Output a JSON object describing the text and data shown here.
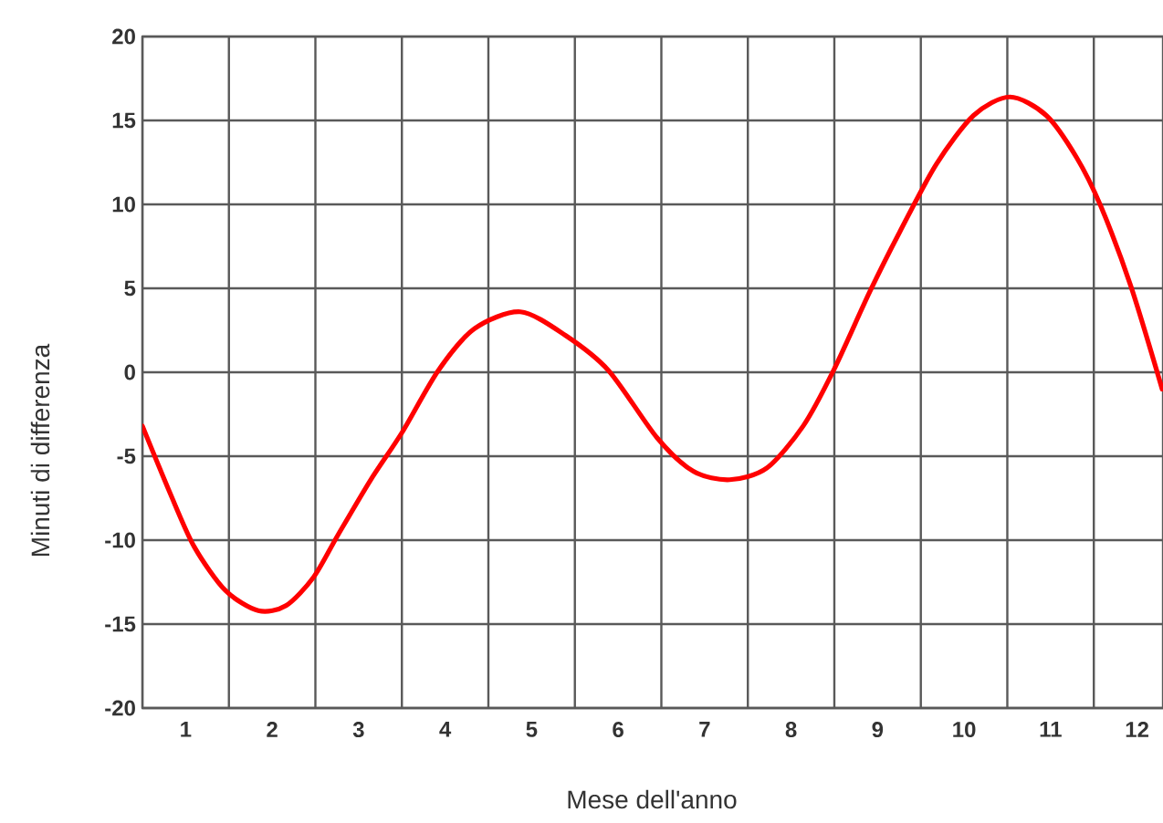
{
  "chart_data": {
    "type": "line",
    "xlabel": "Mese dell'anno",
    "ylabel": "Minuti di differenza",
    "x": [
      0,
      0.32,
      0.6,
      0.96,
      1.34,
      1.66,
      1.98,
      2.26,
      2.64,
      3.0,
      3.42,
      3.84,
      4.37,
      4.89,
      5.39,
      5.95,
      6.37,
      6.79,
      7.22,
      7.64,
      7.99,
      8.41,
      8.76,
      9.18,
      9.61,
      10.03,
      10.45,
      10.8,
      11.08,
      11.43,
      11.79
    ],
    "series": [
      {
        "color": "#ff0000",
        "values": [
          -3.2,
          -7.2,
          -10.4,
          -13.0,
          -14.2,
          -13.9,
          -12.2,
          -9.7,
          -6.4,
          -3.6,
          0.1,
          2.6,
          3.6,
          2.2,
          0.1,
          -3.9,
          -5.9,
          -6.4,
          -5.7,
          -3.2,
          0.1,
          4.8,
          8.4,
          12.4,
          15.3,
          16.4,
          15.3,
          12.8,
          9.9,
          5.1,
          -1.0
        ]
      }
    ],
    "xlim": [
      0,
      11.8
    ],
    "ylim": [
      -20,
      20
    ],
    "xticks": [
      {
        "value": 0,
        "label": null
      },
      {
        "value": 0.5,
        "label": "1"
      },
      {
        "value": 1,
        "label": null
      },
      {
        "value": 1.5,
        "label": "2"
      },
      {
        "value": 2,
        "label": null
      },
      {
        "value": 2.5,
        "label": "3"
      },
      {
        "value": 3,
        "label": null
      },
      {
        "value": 3.5,
        "label": "4"
      },
      {
        "value": 4,
        "label": null
      },
      {
        "value": 4.5,
        "label": "5"
      },
      {
        "value": 5,
        "label": null
      },
      {
        "value": 5.5,
        "label": "6"
      },
      {
        "value": 6,
        "label": null
      },
      {
        "value": 6.5,
        "label": "7"
      },
      {
        "value": 7,
        "label": null
      },
      {
        "value": 7.5,
        "label": "8"
      },
      {
        "value": 8,
        "label": null
      },
      {
        "value": 8.5,
        "label": "9"
      },
      {
        "value": 9,
        "label": null
      },
      {
        "value": 9.5,
        "label": "10"
      },
      {
        "value": 10,
        "label": null
      },
      {
        "value": 10.5,
        "label": "11"
      },
      {
        "value": 11,
        "label": null
      },
      {
        "value": 11.5,
        "label": "12"
      }
    ],
    "yticks": [
      -20,
      -15,
      -10,
      -5,
      0,
      5,
      10,
      15,
      20
    ],
    "grid": true,
    "marker": "none",
    "line_style": "solid"
  }
}
